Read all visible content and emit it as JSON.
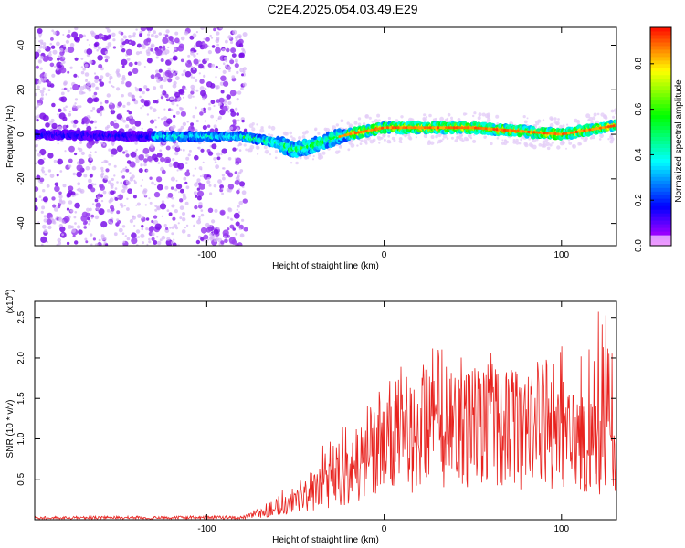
{
  "title": "C2E4.2025.054.03.49.E29",
  "chart_data": [
    {
      "type": "heatmap",
      "xlabel": "Height of straight line (km)",
      "ylabel": "Frequency (Hz)",
      "xlim": [
        -197,
        131
      ],
      "ylim": [
        -50,
        48
      ],
      "xticks": [
        -100,
        0,
        100
      ],
      "yticks": [
        -40,
        -20,
        0,
        20,
        40
      ],
      "colorbar": {
        "label": "Normalized spectral amplitude",
        "range": [
          0.0,
          0.96
        ],
        "ticks": [
          0.0,
          0.2,
          0.4,
          0.6,
          0.8
        ]
      },
      "description_points_height_km": [
        -197,
        -130,
        -80,
        -60,
        -50,
        -40,
        -30,
        -20,
        0,
        50,
        100,
        131
      ],
      "ridge_frequency_hz": [
        0,
        -1,
        -1,
        -4,
        -7,
        -5,
        -2,
        0,
        3,
        3,
        0,
        4
      ]
    },
    {
      "type": "line",
      "xlabel": "Height of straight line (km)",
      "ylabel": "SNR (10 * v/v)",
      "ymultiplier": "(x10",
      "ymultiplier_exp": "4",
      "ymultiplier_close": ")",
      "xlim": [
        -197,
        131
      ],
      "ylim": [
        0,
        2.7
      ],
      "xticks": [
        -100,
        0,
        100
      ],
      "yticks": [
        0.5,
        1.0,
        1.5,
        2.0,
        2.5
      ],
      "yticklabels": [
        "0.5",
        "1.0",
        "1.5",
        "2.0",
        "2.5"
      ],
      "series": [
        {
          "name": "SNR",
          "color": "#e8231f",
          "envelope_x": [
            -197,
            -80,
            -70,
            -60,
            -50,
            -40,
            -30,
            -20,
            -10,
            0,
            10,
            20,
            30,
            40,
            50,
            60,
            70,
            80,
            90,
            100,
            110,
            120,
            131
          ],
          "envelope_mean": [
            0.02,
            0.03,
            0.08,
            0.15,
            0.25,
            0.38,
            0.5,
            0.62,
            0.8,
            0.95,
            1.05,
            1.15,
            1.2,
            1.25,
            1.3,
            1.3,
            1.25,
            1.2,
            1.2,
            1.15,
            1.1,
            1.05,
            1.0
          ],
          "envelope_peak": [
            0.04,
            0.05,
            0.18,
            0.3,
            0.55,
            0.75,
            1.2,
            1.2,
            1.4,
            1.8,
            1.9,
            2.1,
            2.3,
            2.2,
            2.0,
            2.1,
            1.9,
            1.8,
            2.1,
            2.2,
            2.5,
            2.6,
            2.7
          ]
        }
      ]
    }
  ]
}
